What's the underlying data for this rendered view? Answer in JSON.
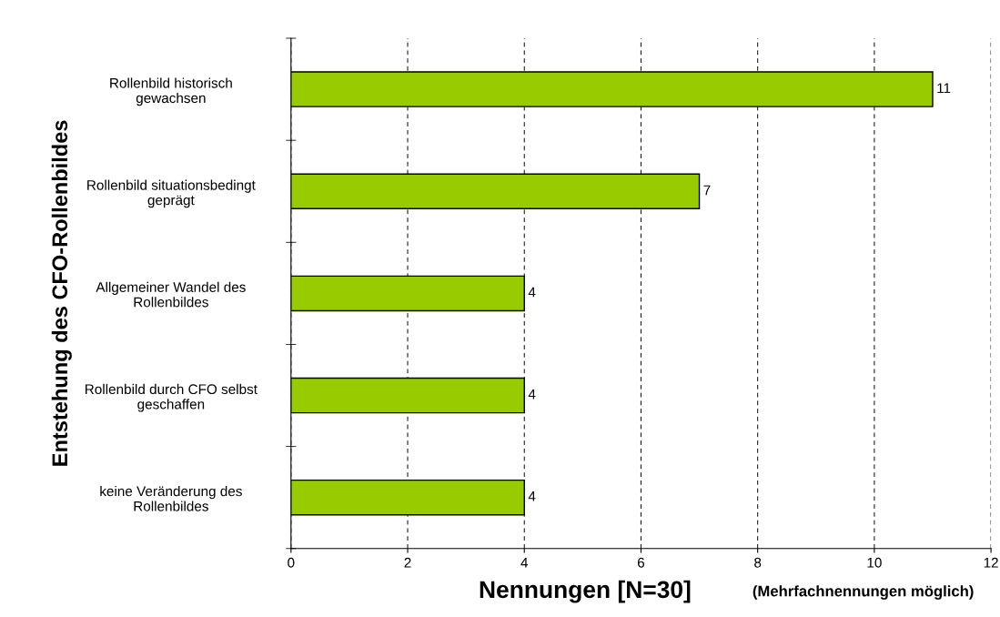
{
  "chart_data": {
    "type": "bar",
    "orientation": "horizontal",
    "categories": [
      "Rollenbild historisch\ngewachsen",
      "Rollenbild situationsbedingt\ngeprägt",
      "Allgemeiner Wandel des\nRollenbildes",
      "Rollenbild durch CFO selbst\ngeschaffen",
      "keine Veränderung des\nRollenbildes"
    ],
    "values": [
      11,
      7,
      4,
      4,
      4
    ],
    "color": "#99cc00",
    "data_labels": true,
    "xlim": [
      0,
      12
    ],
    "xticks": [
      0,
      2,
      4,
      6,
      8,
      10,
      12
    ],
    "grid": "x",
    "xlabel": "Nennungen [N=30]",
    "ylabel": "Entstehung des CFO-Rollenbildes",
    "annotations": [
      "(Mehrfachnennungen möglich)"
    ]
  }
}
